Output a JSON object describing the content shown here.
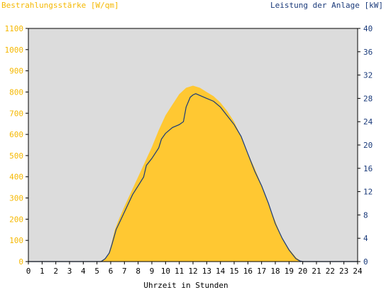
{
  "colors": {
    "plot_background": "#dcdcdc",
    "irradiance_fill": "#ffc832",
    "power_line": "#1a3a7a",
    "left_axis_text": "#f5b800",
    "right_axis_text": "#1a3a7a",
    "frame": "#000000"
  },
  "chart_data": {
    "type": "area",
    "title": "",
    "left_axis_label": "Bestrahlungsstärke [W/qm]",
    "right_axis_label": "Leistung der Anlage [kW]",
    "xlabel": "Uhrzeit in Stunden",
    "xlim": [
      0,
      24
    ],
    "ylim_left": [
      0,
      1100
    ],
    "ylim_right": [
      0,
      40
    ],
    "x_ticks": [
      "0",
      "1",
      "2",
      "3",
      "4",
      "5",
      "6",
      "7",
      "8",
      "9",
      "10",
      "11",
      "12",
      "13",
      "14",
      "15",
      "16",
      "17",
      "18",
      "19",
      "20",
      "21",
      "22",
      "23",
      "24"
    ],
    "y_ticks_left": [
      "0",
      "100",
      "200",
      "300",
      "400",
      "500",
      "600",
      "700",
      "800",
      "900",
      "1000",
      "1100"
    ],
    "y_ticks_right": [
      "0",
      "4",
      "8",
      "12",
      "16",
      "20",
      "24",
      "28",
      "32",
      "36",
      "40"
    ],
    "grid": false,
    "series": [
      {
        "name": "Bestrahlungsstärke [W/qm]",
        "axis": "left",
        "style": "filled-area",
        "x": [
          0,
          5.2,
          5.5,
          5.8,
          6.0,
          6.3,
          6.6,
          7.0,
          7.5,
          8.0,
          8.5,
          9.0,
          9.5,
          10.0,
          10.5,
          11.0,
          11.5,
          12.0,
          12.5,
          13.0,
          13.5,
          14.0,
          14.5,
          15.0,
          15.5,
          16.0,
          16.5,
          17.0,
          17.5,
          18.0,
          18.5,
          19.0,
          19.5,
          19.8,
          20.0,
          24
        ],
        "y": [
          0,
          0,
          10,
          30,
          70,
          150,
          200,
          260,
          330,
          400,
          470,
          540,
          620,
          690,
          740,
          790,
          820,
          830,
          820,
          800,
          780,
          750,
          710,
          660,
          590,
          510,
          440,
          360,
          270,
          190,
          110,
          60,
          20,
          5,
          0,
          0
        ]
      },
      {
        "name": "Leistung der Anlage [kW]",
        "axis": "right",
        "style": "line",
        "x": [
          0,
          5.3,
          5.6,
          5.9,
          6.1,
          6.4,
          6.8,
          7.2,
          7.6,
          8.0,
          8.4,
          8.6,
          9.0,
          9.5,
          9.7,
          10.0,
          10.5,
          11.0,
          11.3,
          11.5,
          11.8,
          12.0,
          12.2,
          12.5,
          13.0,
          13.5,
          14.0,
          14.5,
          15.0,
          15.5,
          16.0,
          16.5,
          17.0,
          17.5,
          18.0,
          18.5,
          19.0,
          19.5,
          19.8,
          20.0,
          24
        ],
        "y": [
          0,
          0,
          0.5,
          1.5,
          3.0,
          5.5,
          7.5,
          9.5,
          11.5,
          13.0,
          14.5,
          16.5,
          17.7,
          19.5,
          21.0,
          22.0,
          23.0,
          23.5,
          24.0,
          26.5,
          28.2,
          28.6,
          28.8,
          28.5,
          28.0,
          27.5,
          26.5,
          25.0,
          23.5,
          21.5,
          18.5,
          15.5,
          13.0,
          10.0,
          6.5,
          4.0,
          2.0,
          0.5,
          0.1,
          0,
          0
        ]
      }
    ]
  }
}
